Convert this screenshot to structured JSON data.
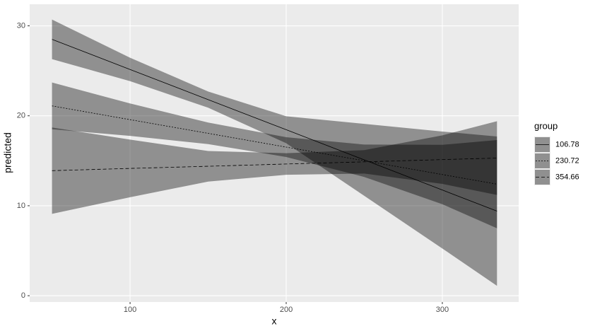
{
  "chart_data": {
    "type": "ribbon-line",
    "x_label": "x",
    "y_label": "predicted",
    "legend_title": "group",
    "x": [
      50,
      100,
      150,
      200,
      250,
      300,
      335
    ],
    "xlim": [
      35.7,
      348.9
    ],
    "ylim": [
      -0.7,
      32.4
    ],
    "xticks": [
      100,
      200,
      300
    ],
    "yticks": [
      0,
      10,
      20,
      30
    ],
    "grid": true,
    "ribbon_color": "#000000",
    "ribbon_opacity": 0.39,
    "series": [
      {
        "name": "106.78",
        "color": "#000000",
        "dash": "none",
        "values": [
          28.5,
          25.15,
          21.8,
          18.45,
          15.1,
          11.75,
          9.4
        ],
        "lower": [
          26.3,
          23.85,
          20.9,
          16.95,
          11.1,
          5.25,
          1.1
        ],
        "upper": [
          30.7,
          26.45,
          22.7,
          19.95,
          19.1,
          18.25,
          17.7
        ]
      },
      {
        "name": "230.72",
        "color": "#000000",
        "dash": "2 2",
        "values": [
          21.1,
          19.57,
          18.05,
          16.52,
          15.0,
          13.47,
          12.4
        ],
        "lower": [
          18.5,
          17.77,
          16.85,
          15.42,
          13.2,
          10.17,
          7.5
        ],
        "upper": [
          23.7,
          21.37,
          19.25,
          17.62,
          16.8,
          16.77,
          17.3
        ]
      },
      {
        "name": "354.66",
        "color": "#000000",
        "dash": "5 3",
        "values": [
          13.9,
          14.15,
          14.39,
          14.64,
          14.88,
          15.13,
          15.3
        ],
        "lower": [
          9.1,
          10.95,
          12.69,
          13.44,
          13.58,
          12.43,
          11.2
        ],
        "upper": [
          18.7,
          17.35,
          16.09,
          15.84,
          16.18,
          17.83,
          19.4
        ]
      }
    ]
  }
}
